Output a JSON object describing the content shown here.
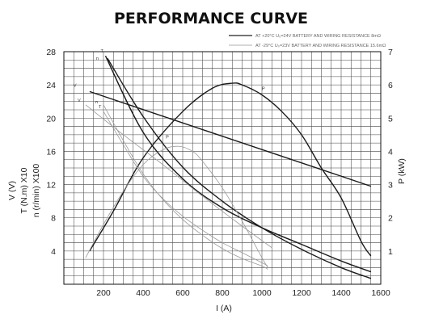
{
  "chart_data": {
    "type": "line",
    "title": "PERFORMANCE CURVE",
    "xlabel": "I (A)",
    "ylabel_left": [
      "V (V)",
      "T (N.m) X10",
      "n (r/min) X100"
    ],
    "ylabel_right": "P (kW)",
    "xlim": [
      0,
      1600
    ],
    "ylim_left": [
      0,
      28
    ],
    "ylim_right": [
      0,
      7
    ],
    "x_ticks": [
      "200",
      "400",
      "600",
      "800",
      "1000",
      "1200",
      "1400",
      "1600"
    ],
    "y_left_ticks": [
      "4",
      "8",
      "12",
      "16",
      "20",
      "24",
      "28"
    ],
    "y_right_ticks": [
      "1",
      "2",
      "3",
      "4",
      "5",
      "6",
      "7"
    ],
    "grid": true,
    "legend": {
      "placement": "top-right",
      "entries": [
        {
          "text": "AT +20°C   U₀=24V   BATTERY AND WIRING RESISTANCE 8mΩ",
          "style": "solid",
          "color": "#222222"
        },
        {
          "text": "AT -29°C  U₀=23V   BATTERY AND WIRING RESISTANCE 15.6mΩ",
          "style": "thin",
          "color": "#999999"
        }
      ]
    },
    "series": [
      {
        "name": "V",
        "axis": "left",
        "group": "+20°C",
        "x": [
          130,
          1550
        ],
        "y": [
          23.2,
          11.8
        ]
      },
      {
        "name": "T",
        "axis": "left",
        "group": "+20°C",
        "x": [
          210,
          400,
          600,
          800,
          1000,
          1200,
          1400,
          1550
        ],
        "y": [
          27.5,
          18.3,
          12.7,
          9.2,
          6.8,
          4.8,
          2.8,
          1.5
        ]
      },
      {
        "name": "n",
        "axis": "left",
        "group": "+20°C",
        "x": [
          220,
          400,
          600,
          800,
          1000,
          1200,
          1400,
          1550
        ],
        "y": [
          27.2,
          20.2,
          14.1,
          10.0,
          6.8,
          4.2,
          2.0,
          0.7
        ]
      },
      {
        "name": "P",
        "axis": "right",
        "group": "+20°C",
        "x": [
          130,
          250,
          400,
          600,
          750,
          850,
          900,
          1000,
          1100,
          1200,
          1300,
          1400,
          1500,
          1550
        ],
        "y": [
          1.0,
          2.2,
          3.8,
          5.2,
          5.9,
          6.05,
          6.0,
          5.7,
          5.2,
          4.5,
          3.5,
          2.6,
          1.3,
          0.85
        ]
      },
      {
        "name": "V",
        "axis": "left",
        "group": "-29°C",
        "x": [
          110,
          300,
          500,
          700,
          900,
          1050
        ],
        "y": [
          21.6,
          18.0,
          14.4,
          10.6,
          7.0,
          4.4
        ]
      },
      {
        "name": "n",
        "axis": "left",
        "group": "-29°C",
        "x": [
          200,
          300,
          400,
          500,
          600,
          700,
          800,
          900,
          1000,
          1030
        ],
        "y": [
          21.6,
          17.3,
          13.3,
          10.2,
          7.8,
          5.9,
          4.3,
          3.1,
          2.2,
          1.8
        ]
      },
      {
        "name": "T",
        "axis": "left",
        "group": "-29°C",
        "x": [
          200,
          300,
          400,
          500,
          600,
          700,
          800,
          900,
          1000,
          1030
        ],
        "y": [
          20.8,
          16.8,
          13.0,
          10.3,
          8.2,
          6.5,
          5.0,
          3.8,
          2.6,
          2.2
        ]
      },
      {
        "name": "P",
        "axis": "right",
        "group": "-29°C",
        "x": [
          110,
          200,
          300,
          400,
          500,
          580,
          650,
          700,
          800,
          900,
          1000,
          1030
        ],
        "y": [
          0.8,
          1.8,
          2.8,
          3.6,
          4.05,
          4.15,
          4.0,
          3.7,
          2.9,
          1.9,
          0.8,
          0.5
        ]
      }
    ]
  }
}
